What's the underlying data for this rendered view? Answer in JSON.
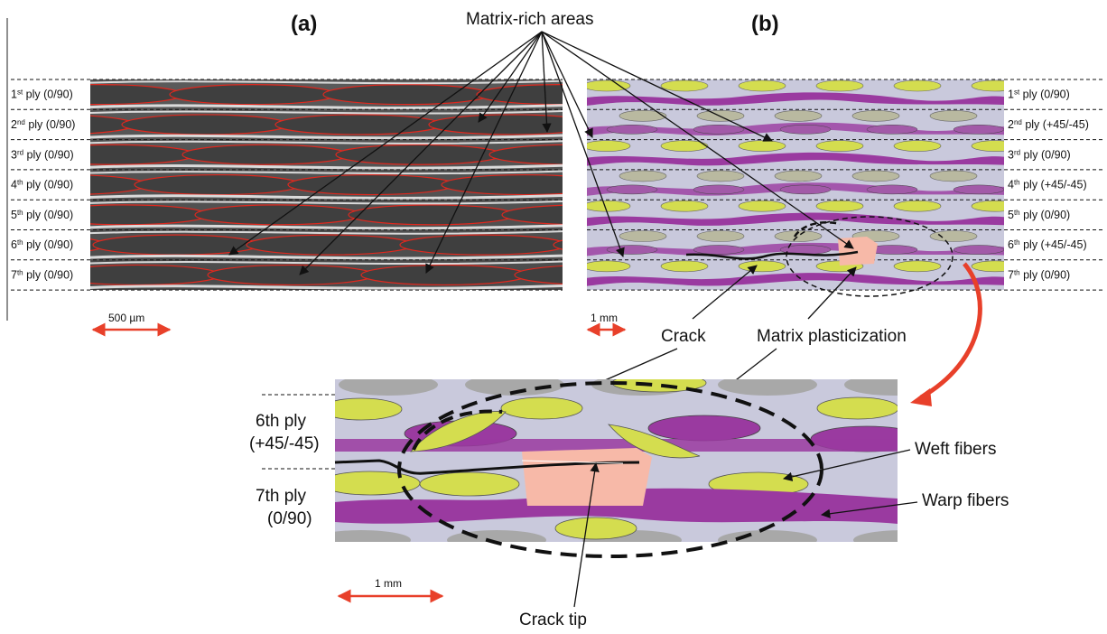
{
  "panels": {
    "a": {
      "label": "(a)",
      "plies": [
        "1st ply (0/90)",
        "2nd ply (0/90)",
        "3rd ply (0/90)",
        "4th ply (0/90)",
        "5th ply (0/90)",
        "6th ply (0/90)",
        "7th ply (0/90)"
      ],
      "scale": "500 µm"
    },
    "b": {
      "label": "(b)",
      "plies": [
        "1st ply (0/90)",
        "2nd ply (+45/-45)",
        "3rd ply (0/90)",
        "4th ply (+45/-45)",
        "5th ply (0/90)",
        "6th ply (+45/-45)",
        "7th ply (0/90)"
      ],
      "scale": "1 mm"
    },
    "zoom": {
      "ply6_line1": "6th ply",
      "ply6_line2": "(+45/-45)",
      "ply7_line1": "7th ply",
      "ply7_line2": "(0/90)",
      "scale": "1 mm"
    }
  },
  "callouts": {
    "matrix_rich": "Matrix-rich areas",
    "crack": "Crack",
    "matrix_plasticization": "Matrix plasticization",
    "weft": "Weft fibers",
    "warp": "Warp fibers",
    "crack_tip": "Crack tip"
  },
  "colors": {
    "weft": "#d4dd4f",
    "warp": "#9a3aa0",
    "matrix": "#c9c9dc",
    "plasticization": "#f7b9a8",
    "scale_arrow": "#e8402a",
    "ellipse_outline": "#e0281e"
  }
}
